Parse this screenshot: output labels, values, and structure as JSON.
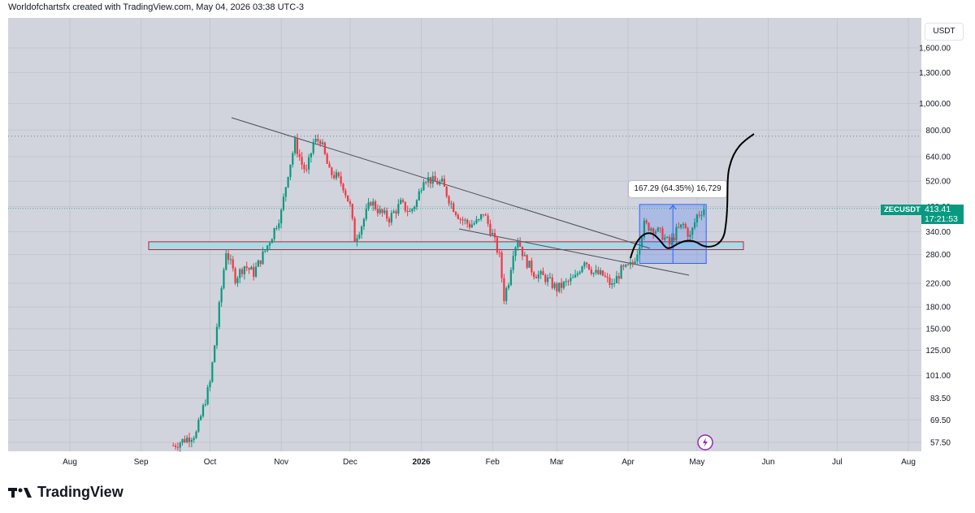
{
  "header": {
    "caption": "Worldofchartsfx created with TradingView.com, May 04, 2026 03:38 UTC-3"
  },
  "currency_button": "USDT",
  "symbol_tag": "ZECUSDT",
  "last_price": "413.41",
  "countdown": "17:21:53",
  "measure_label": "167.29 (64.35%) 16,729",
  "footer": {
    "brand": "TradingView"
  },
  "colors": {
    "up": "#089981",
    "down": "#f23645",
    "zone": "#a8dbe6",
    "measure": "#2962ff"
  },
  "icons": {
    "logo": "tradingview-logo-icon",
    "flash": "lightning-icon"
  },
  "chart_data": {
    "type": "candlestick",
    "symbol": "ZECUSDT",
    "scale": "log",
    "y_ticks": [
      "1,600.00",
      "1,300.00",
      "1,000.00",
      "800.00",
      "640.00",
      "520.00",
      "420.00",
      "340.00",
      "280.00",
      "220.00",
      "180.00",
      "150.00",
      "125.00",
      "101.00",
      "83.50",
      "69.50",
      "57.50"
    ],
    "x_ticks": [
      "Aug",
      "Sep",
      "Oct",
      "Nov",
      "Dec",
      "2026",
      "Feb",
      "Mar",
      "Apr",
      "May",
      "Jun",
      "Jul",
      "Aug"
    ],
    "dotted_level": 760,
    "zone": {
      "low": 292,
      "high": 312
    },
    "measure": {
      "from": 260,
      "to": 427.29,
      "change": 167.29,
      "percent": "64.35%"
    },
    "trendlines": [
      {
        "from": {
          "date": "Nov 2025",
          "price": 900
        },
        "to": {
          "date": "Apr 2026",
          "price": 300
        }
      },
      {
        "from": {
          "date": "Jan 2026",
          "price": 345
        },
        "to": {
          "date": "Apr 2026",
          "price": 240
        }
      }
    ],
    "path": [
      [
        "2025-09-15",
        56
      ],
      [
        "2025-09-25",
        62
      ],
      [
        "2025-10-01",
        95
      ],
      [
        "2025-10-05",
        180
      ],
      [
        "2025-10-08",
        290
      ],
      [
        "2025-10-12",
        230
      ],
      [
        "2025-10-16",
        255
      ],
      [
        "2025-10-20",
        240
      ],
      [
        "2025-10-25",
        290
      ],
      [
        "2025-10-28",
        330
      ],
      [
        "2025-11-01",
        400
      ],
      [
        "2025-11-04",
        560
      ],
      [
        "2025-11-07",
        720
      ],
      [
        "2025-11-10",
        600
      ],
      [
        "2025-11-12",
        560
      ],
      [
        "2025-11-15",
        720
      ],
      [
        "2025-11-18",
        740
      ],
      [
        "2025-11-22",
        560
      ],
      [
        "2025-11-25",
        540
      ],
      [
        "2025-11-28",
        500
      ],
      [
        "2025-12-01",
        420
      ],
      [
        "2025-12-03",
        320
      ],
      [
        "2025-12-06",
        360
      ],
      [
        "2025-12-10",
        440
      ],
      [
        "2025-12-14",
        400
      ],
      [
        "2025-12-18",
        380
      ],
      [
        "2025-12-23",
        430
      ],
      [
        "2025-12-27",
        400
      ],
      [
        "2025-12-30",
        440
      ],
      [
        "2026-01-02",
        540
      ],
      [
        "2026-01-06",
        520
      ],
      [
        "2026-01-10",
        510
      ],
      [
        "2026-01-14",
        430
      ],
      [
        "2026-01-18",
        380
      ],
      [
        "2026-01-22",
        360
      ],
      [
        "2026-01-26",
        370
      ],
      [
        "2026-01-28",
        400
      ],
      [
        "2026-02-01",
        330
      ],
      [
        "2026-02-04",
        275
      ],
      [
        "2026-02-06",
        195
      ],
      [
        "2026-02-08",
        225
      ],
      [
        "2026-02-10",
        290
      ],
      [
        "2026-02-12",
        320
      ],
      [
        "2026-02-15",
        270
      ],
      [
        "2026-02-19",
        240
      ],
      [
        "2026-02-24",
        230
      ],
      [
        "2026-03-01",
        210
      ],
      [
        "2026-03-05",
        220
      ],
      [
        "2026-03-09",
        230
      ],
      [
        "2026-03-13",
        270
      ],
      [
        "2026-03-17",
        240
      ],
      [
        "2026-03-21",
        235
      ],
      [
        "2026-03-25",
        215
      ],
      [
        "2026-03-29",
        245
      ],
      [
        "2026-04-01",
        250
      ],
      [
        "2026-04-03",
        260
      ],
      [
        "2026-04-05",
        290
      ],
      [
        "2026-04-08",
        360
      ],
      [
        "2026-04-12",
        350
      ],
      [
        "2026-04-16",
        330
      ],
      [
        "2026-04-19",
        305
      ],
      [
        "2026-04-22",
        340
      ],
      [
        "2026-04-25",
        360
      ],
      [
        "2026-04-28",
        325
      ],
      [
        "2026-05-01",
        390
      ],
      [
        "2026-05-04",
        413.41
      ]
    ]
  }
}
